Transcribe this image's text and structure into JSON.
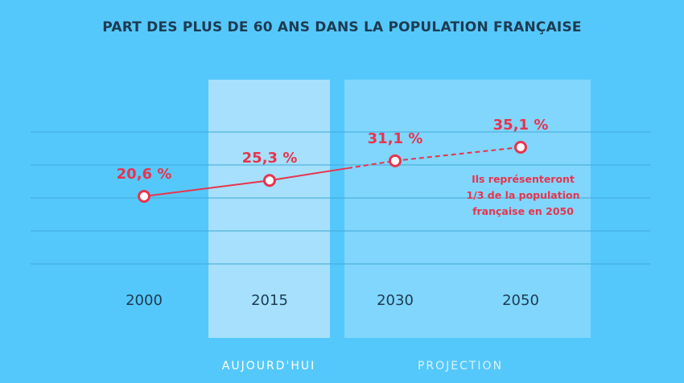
{
  "chart_data": {
    "type": "line",
    "title": "PART DES PLUS DE 60 ANS DANS LA POPULATION FRANÇAISE",
    "categories": [
      "2000",
      "2015",
      "2030",
      "2050"
    ],
    "values": [
      20.6,
      25.3,
      31.1,
      35.1
    ],
    "value_labels": [
      "20,6 %",
      "25,3 %",
      "31,1 %",
      "35,1 %"
    ],
    "unit": "%",
    "ylim": [
      10,
      40
    ],
    "grid": true,
    "segments": [
      "solid",
      "solid",
      "dashed"
    ],
    "zones": [
      {
        "label": "AUJOURD'HUI",
        "category": "2015"
      },
      {
        "label": "PROJECTION",
        "category": "2030-2050"
      }
    ],
    "annotation": [
      "Ils représenteront",
      "1/3 de la population",
      "française en 2050"
    ]
  },
  "colors": {
    "background": "#55c8fb",
    "zone_today": "#a6e0fc",
    "zone_projection": "#80d6fc",
    "line": "#e8344e",
    "grid": "#3fa8d8",
    "text": "#1d3b52"
  }
}
